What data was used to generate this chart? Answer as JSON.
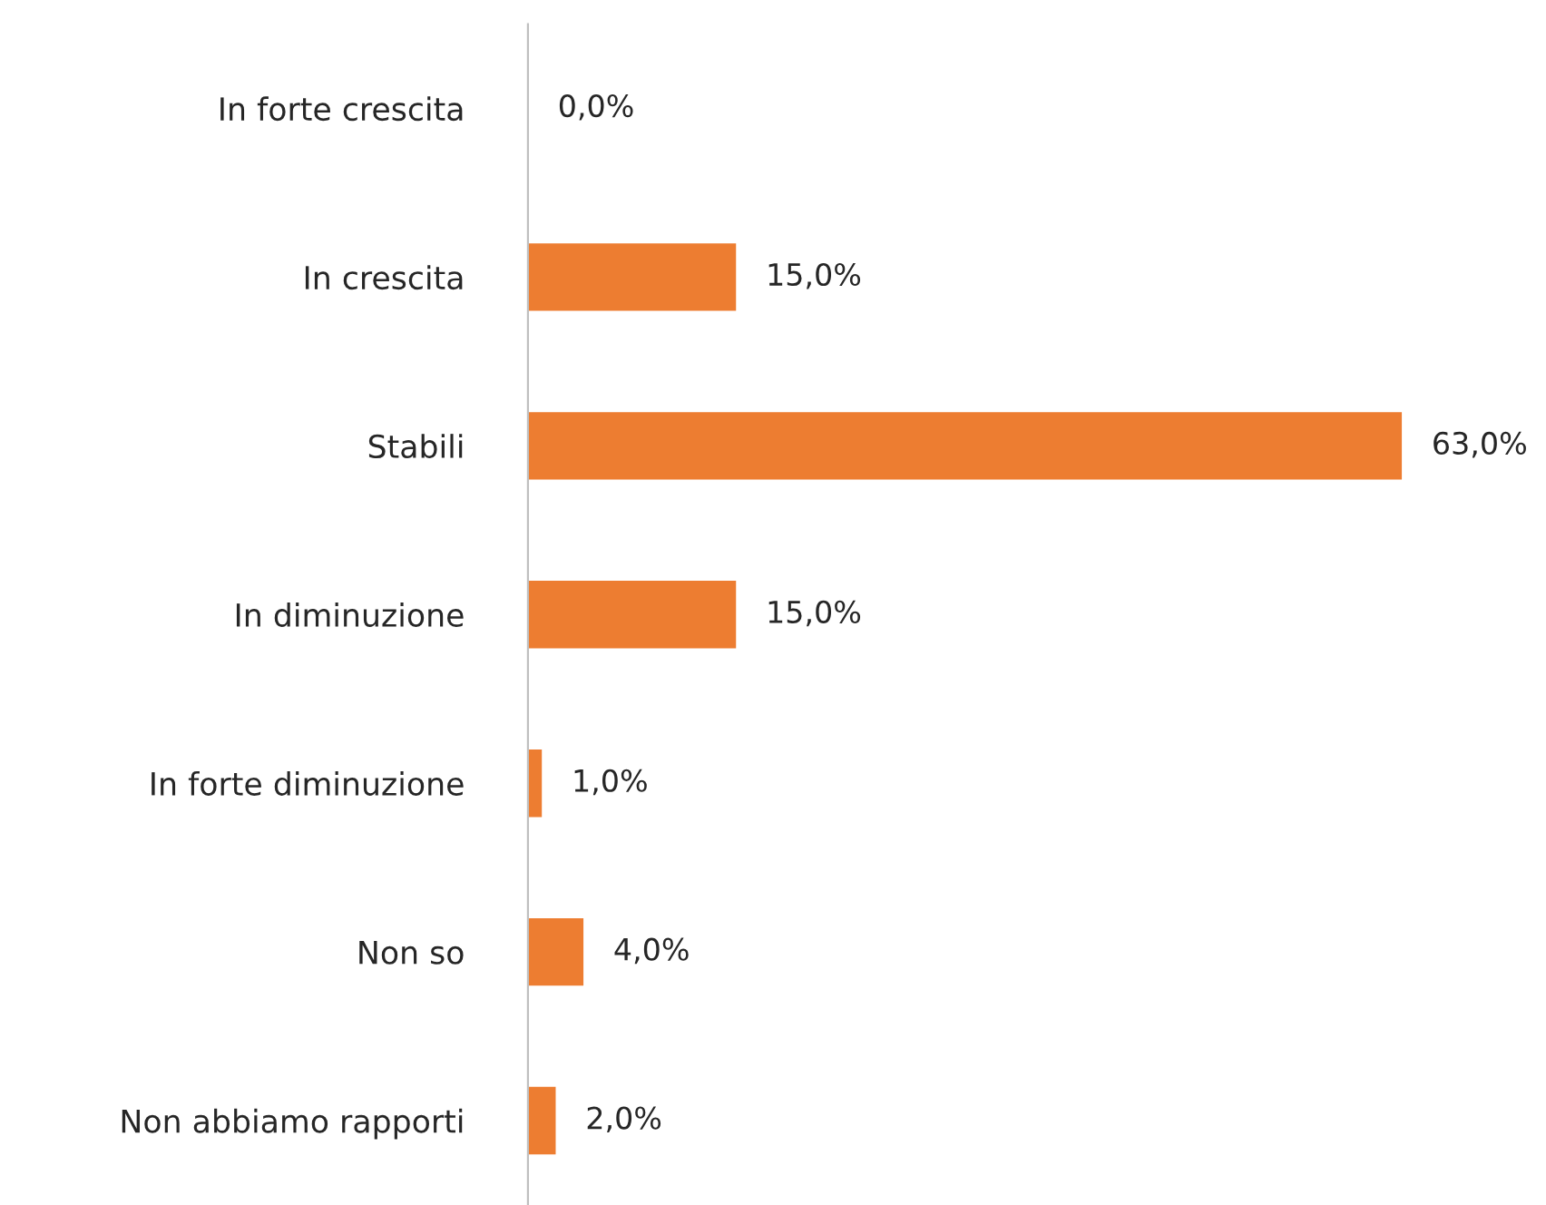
{
  "chart_data": {
    "type": "bar",
    "orientation": "horizontal",
    "categories": [
      "In forte crescita",
      "In crescita",
      "Stabili",
      "In diminuzione",
      "In forte diminuzione",
      "Non so",
      "Non abbiamo rapporti"
    ],
    "values": [
      0,
      15,
      63,
      15,
      1,
      4,
      2
    ],
    "value_labels": [
      "0,0%",
      "15,0%",
      "63,0%",
      "15,0%",
      "1,0%",
      "4,0%",
      "2,0%"
    ],
    "color": "#ed7d31",
    "grid": false,
    "legend": false
  }
}
